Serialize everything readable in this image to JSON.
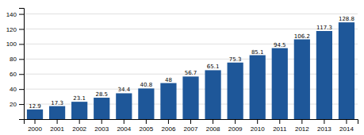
{
  "chart_data": {
    "type": "bar",
    "categories": [
      "2000",
      "2001",
      "2002",
      "2003",
      "2004",
      "2005",
      "2006",
      "2007",
      "2008",
      "2009",
      "2010",
      "2011",
      "2012",
      "2013",
      "2014"
    ],
    "values": [
      12.9,
      17.3,
      23.1,
      28.5,
      34.4,
      40.8,
      48,
      56.7,
      65.1,
      75.3,
      85.1,
      94.5,
      106.2,
      117.3,
      128.8
    ],
    "color": "#1e5799",
    "ylim": [
      0,
      148
    ],
    "yticks": [
      20,
      40,
      60,
      80,
      100,
      120,
      140
    ],
    "grid": true,
    "data_labels": true
  }
}
